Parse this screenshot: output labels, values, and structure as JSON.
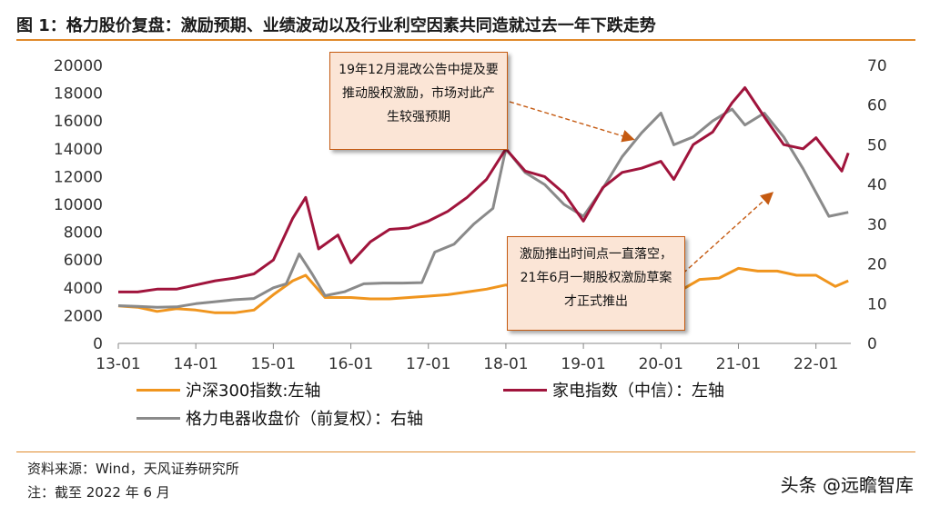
{
  "title": "图 1：格力股价复盘：激励预期、业绩波动以及行业利空因素共同造就过去一年下跌走势",
  "source": "资料来源：Wind，天风证券研究所",
  "note": "注：截至 2022 年 6 月",
  "watermark": "头条 @远瞻智库",
  "callouts": [
    {
      "text": "19年12月混改公告中提及要推动股权激励，市场对此产生较强预期"
    },
    {
      "text": "激励推出时间点一直落空，21年6月一期股权激励草案才正式推出"
    }
  ],
  "chart_data": {
    "type": "line",
    "x_ticks": [
      "13-01",
      "14-01",
      "15-01",
      "16-01",
      "17-01",
      "18-01",
      "19-01",
      "20-01",
      "21-01",
      "22-01"
    ],
    "y_left": {
      "ylim": [
        0,
        20000
      ],
      "ticks": [
        0,
        2000,
        4000,
        6000,
        8000,
        10000,
        12000,
        14000,
        16000,
        18000,
        20000
      ]
    },
    "y_right": {
      "ylim": [
        0,
        70
      ],
      "ticks": [
        0,
        10,
        20,
        30,
        40,
        50,
        60,
        70
      ]
    },
    "series": [
      {
        "name": "沪深300指数:左轴",
        "axis": "left",
        "color": "#f0951e",
        "x": [
          "2013-01",
          "2013-04",
          "2013-07",
          "2013-10",
          "2014-01",
          "2014-04",
          "2014-07",
          "2014-10",
          "2015-01",
          "2015-04",
          "2015-06",
          "2015-09",
          "2016-01",
          "2016-04",
          "2016-07",
          "2016-10",
          "2017-01",
          "2017-04",
          "2017-07",
          "2017-10",
          "2018-01",
          "2018-04",
          "2018-07",
          "2018-10",
          "2019-01",
          "2019-04",
          "2019-07",
          "2019-10",
          "2020-01",
          "2020-04",
          "2020-07",
          "2020-10",
          "2021-01",
          "2021-04",
          "2021-07",
          "2021-10",
          "2022-01",
          "2022-04",
          "2022-06"
        ],
        "values": [
          2700,
          2600,
          2300,
          2500,
          2400,
          2200,
          2200,
          2400,
          3500,
          4500,
          4900,
          3300,
          3300,
          3200,
          3200,
          3300,
          3400,
          3500,
          3700,
          3900,
          4200,
          3800,
          3500,
          3300,
          3000,
          3900,
          3800,
          3900,
          4200,
          3800,
          4600,
          4700,
          5400,
          5200,
          5200,
          4900,
          4900,
          4100,
          4500
        ]
      },
      {
        "name": "家电指数（中信）：左轴",
        "axis": "left",
        "color": "#a0143c",
        "x": [
          "2013-01",
          "2013-04",
          "2013-07",
          "2013-10",
          "2014-01",
          "2014-04",
          "2014-07",
          "2014-10",
          "2015-01",
          "2015-04",
          "2015-06",
          "2015-08",
          "2015-11",
          "2016-01",
          "2016-04",
          "2016-07",
          "2016-10",
          "2017-01",
          "2017-04",
          "2017-07",
          "2017-10",
          "2018-01",
          "2018-04",
          "2018-07",
          "2018-10",
          "2019-01",
          "2019-04",
          "2019-07",
          "2019-10",
          "2020-01",
          "2020-03",
          "2020-06",
          "2020-09",
          "2020-12",
          "2021-02",
          "2021-05",
          "2021-08",
          "2021-11",
          "2022-01",
          "2022-03",
          "2022-05",
          "2022-06"
        ],
        "values": [
          3700,
          3700,
          3900,
          3900,
          4200,
          4500,
          4700,
          5000,
          6000,
          9000,
          10500,
          6800,
          7800,
          5800,
          7300,
          8200,
          8300,
          8800,
          9500,
          10500,
          11800,
          14000,
          12400,
          12000,
          10800,
          8800,
          11200,
          12300,
          12600,
          13100,
          11800,
          14300,
          15200,
          17300,
          18400,
          16300,
          14300,
          14000,
          14800,
          13600,
          12400,
          13700
        ]
      },
      {
        "name": "格力电器收盘价（前复权）：右轴",
        "axis": "right",
        "color": "#8a8a8a",
        "x": [
          "2013-01",
          "2013-04",
          "2013-07",
          "2013-10",
          "2014-01",
          "2014-04",
          "2014-07",
          "2014-10",
          "2015-01",
          "2015-03",
          "2015-05",
          "2015-07",
          "2015-09",
          "2015-12",
          "2016-03",
          "2016-06",
          "2016-09",
          "2016-12",
          "2017-02",
          "2017-05",
          "2017-08",
          "2017-11",
          "2018-01",
          "2018-04",
          "2018-07",
          "2018-10",
          "2019-01",
          "2019-04",
          "2019-07",
          "2019-10",
          "2020-01",
          "2020-03",
          "2020-06",
          "2020-09",
          "2020-12",
          "2021-02",
          "2021-05",
          "2021-08",
          "2021-11",
          "2022-01",
          "2022-03",
          "2022-06"
        ],
        "values": [
          9.5,
          9.3,
          9.1,
          9.2,
          10,
          10.5,
          11,
          11.3,
          14,
          15,
          22.5,
          17.5,
          12,
          13,
          15,
          15.2,
          15.2,
          15.3,
          23,
          25,
          30,
          34,
          49,
          43,
          40,
          35,
          32,
          39,
          47,
          53,
          58,
          50,
          52,
          56,
          59,
          55,
          58,
          52,
          44,
          38,
          32,
          33
        ]
      }
    ]
  }
}
